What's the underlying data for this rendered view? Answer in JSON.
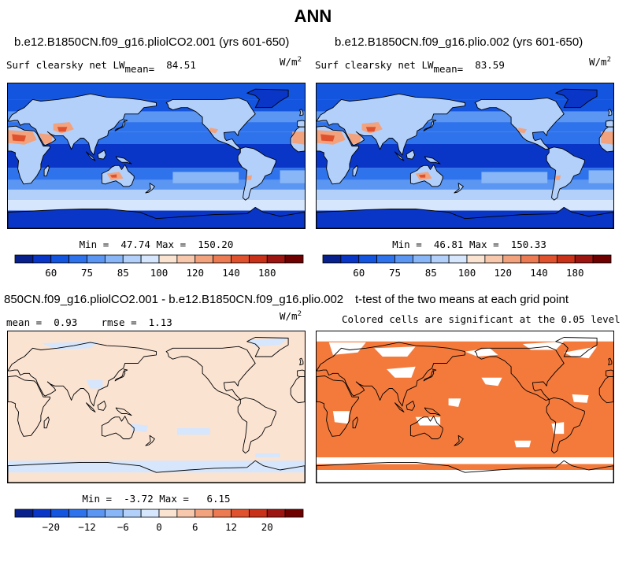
{
  "main_title": "ANN",
  "panels": [
    {
      "id": "case1",
      "title": "b.e12.B1850CN.f09_g16.pliolCO2.001 (yrs 601-650)",
      "left_label": "Surf clearsky net LW",
      "mean_label": "mean=",
      "mean_value": "84.51",
      "units": "W/m",
      "units_exp": "2",
      "min_label": "Min =",
      "min_value": "47.74",
      "max_label": "Max =",
      "max_value": "150.20"
    },
    {
      "id": "case2",
      "title": "b.e12.B1850CN.f09_g16.plio.002 (yrs 601-650)",
      "left_label": "Surf clearsky net LW",
      "mean_label": "mean=",
      "mean_value": "83.59",
      "units": "W/m",
      "units_exp": "2",
      "min_label": "Min =",
      "min_value": "46.81",
      "max_label": "Max =",
      "max_value": "150.33"
    },
    {
      "id": "diff",
      "title": "850CN.f09_g16.pliolCO2.001 - b.e12.B1850CN.f09_g16.plio.002",
      "mean_label": "mean =",
      "mean_value": "0.93",
      "rmse_label": "rmse =",
      "rmse_value": "1.13",
      "units": "W/m",
      "units_exp": "2",
      "min_label": "Min =",
      "min_value": "-3.72",
      "max_label": "Max =",
      "max_value": "6.15"
    },
    {
      "id": "ttest",
      "title": "t-test of the two means at each grid point",
      "subtitle": "Colored cells are significant at the 0.05 level"
    }
  ],
  "chart_data": [
    {
      "type": "heatmap",
      "title": "b.e12.B1850CN.f09_g16.pliolCO2.001 (yrs 601-650)",
      "variable": "Surf clearsky net LW",
      "units": "W/m2",
      "mean": 84.51,
      "min": 47.74,
      "max": 150.2,
      "colorbar": {
        "levels": [
          50,
          55,
          60,
          65,
          70,
          75,
          80,
          85,
          90,
          100,
          110,
          120,
          130,
          140,
          160,
          180,
          200
        ],
        "tick_labels": [
          "60",
          "75",
          "85",
          "100",
          "120",
          "140",
          "180"
        ],
        "colors": [
          "#08208c",
          "#0a36c8",
          "#1455e0",
          "#2f73ec",
          "#5a96f2",
          "#88b6f6",
          "#b2d0fa",
          "#d6e6fc",
          "#fbe3d2",
          "#f8c8ad",
          "#f2a27d",
          "#ec7a52",
          "#e0522e",
          "#c93219",
          "#9c1510",
          "#6e0000"
        ]
      }
    },
    {
      "type": "heatmap",
      "title": "b.e12.B1850CN.f09_g16.plio.002 (yrs 601-650)",
      "variable": "Surf clearsky net LW",
      "units": "W/m2",
      "mean": 83.59,
      "min": 46.81,
      "max": 150.33,
      "colorbar": {
        "levels": [
          50,
          55,
          60,
          65,
          70,
          75,
          80,
          85,
          90,
          100,
          110,
          120,
          130,
          140,
          160,
          180,
          200
        ],
        "tick_labels": [
          "60",
          "75",
          "85",
          "100",
          "120",
          "140",
          "180"
        ],
        "colors": [
          "#08208c",
          "#0a36c8",
          "#1455e0",
          "#2f73ec",
          "#5a96f2",
          "#88b6f6",
          "#b2d0fa",
          "#d6e6fc",
          "#fbe3d2",
          "#f8c8ad",
          "#f2a27d",
          "#ec7a52",
          "#e0522e",
          "#c93219",
          "#9c1510",
          "#6e0000"
        ]
      }
    },
    {
      "type": "heatmap",
      "title": "850CN.f09_g16.pliolCO2.001 - b.e12.B1850CN.f09_g16.plio.002",
      "units": "W/m2",
      "mean": 0.93,
      "rmse": 1.13,
      "min": -3.72,
      "max": 6.15,
      "colorbar": {
        "levels": [
          -28,
          -24,
          -20,
          -16,
          -12,
          -9,
          -6,
          -3,
          0,
          3,
          6,
          9,
          12,
          16,
          20,
          24,
          28
        ],
        "tick_labels": [
          "-20",
          "-12",
          "-6",
          "0",
          "6",
          "12",
          "20"
        ],
        "colors": [
          "#08208c",
          "#0a36c8",
          "#1455e0",
          "#2f73ec",
          "#5a96f2",
          "#88b6f6",
          "#b2d0fa",
          "#d6e6fc",
          "#fbe3d2",
          "#f8c8ad",
          "#f2a27d",
          "#ec7a52",
          "#e0522e",
          "#c93219",
          "#9c1510",
          "#6e0000"
        ]
      }
    },
    {
      "type": "heatmap",
      "title": "t-test of the two means at each grid point",
      "subtitle": "Colored cells are significant at the 0.05 level",
      "significance_color": "#f47a3c"
    }
  ]
}
